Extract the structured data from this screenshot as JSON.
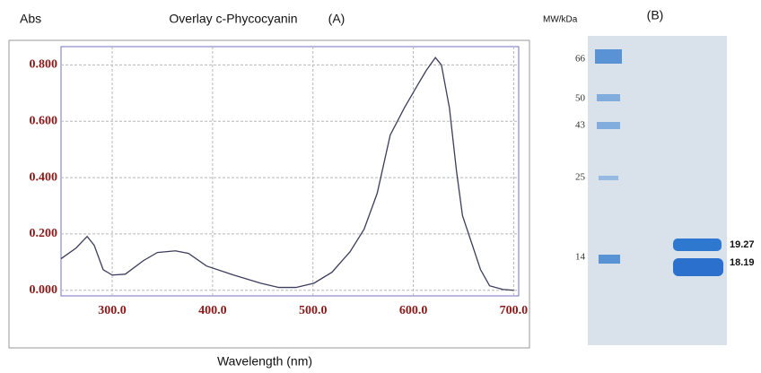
{
  "chart_data": {
    "type": "line",
    "title": "Overlay c-Phycocyanin",
    "panel_label": "(A)",
    "y_label": "Abs",
    "x_label": "Wavelength (nm)",
    "x": [
      249,
      264,
      275,
      282,
      291,
      300,
      313,
      331,
      345,
      363,
      376,
      394,
      421,
      448,
      466,
      483,
      501,
      519,
      537,
      551,
      564,
      577,
      591,
      604,
      613,
      622,
      628,
      636,
      643,
      649,
      658,
      667,
      676,
      689,
      700
    ],
    "values": [
      0.112,
      0.15,
      0.191,
      0.16,
      0.073,
      0.054,
      0.057,
      0.105,
      0.134,
      0.14,
      0.131,
      0.086,
      0.054,
      0.025,
      0.01,
      0.01,
      0.025,
      0.064,
      0.137,
      0.217,
      0.344,
      0.551,
      0.647,
      0.727,
      0.781,
      0.826,
      0.8,
      0.647,
      0.424,
      0.265,
      0.169,
      0.073,
      0.016,
      0.003,
      0.0
    ],
    "color": "#3c3c5c",
    "xlim": [
      249,
      705
    ],
    "ylim": [
      -0.02,
      0.865
    ],
    "xticks": [
      {
        "value": 300,
        "label": "300.0"
      },
      {
        "value": 400,
        "label": "400.0"
      },
      {
        "value": 500,
        "label": "500.0"
      },
      {
        "value": 600,
        "label": "600.0"
      },
      {
        "value": 700,
        "label": "700.0"
      }
    ],
    "yticks": [
      {
        "value": 0,
        "label": "0.000"
      },
      {
        "value": 0.2,
        "label": "0.200"
      },
      {
        "value": 0.4,
        "label": "0.400"
      },
      {
        "value": 0.6,
        "label": "0.600"
      },
      {
        "value": 0.8,
        "label": "0.800"
      }
    ],
    "grid": true
  },
  "gel": {
    "title": "(B)",
    "axis_label": "MW/kDa",
    "markers": [
      "66",
      "50",
      "43",
      "25",
      "14"
    ],
    "band_labels": [
      "19.27",
      "18.19"
    ]
  }
}
